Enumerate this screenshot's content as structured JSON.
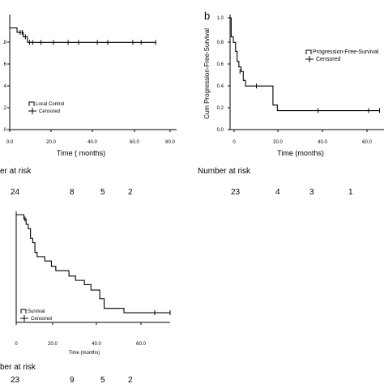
{
  "panels": [
    {
      "letter": "",
      "chart_data": {
        "type": "line",
        "subtype": "kaplan-meier",
        "title": "",
        "xlabel": "Time ( months)",
        "ylabel": "",
        "xlim": [
          0,
          80
        ],
        "ylim": [
          0,
          1
        ],
        "x_ticks": [
          "0.0",
          "20.0",
          "40.0",
          "60.0",
          "80.0"
        ],
        "y_ticks": [
          "0",
          ".2",
          ".4",
          ".6",
          ".8"
        ],
        "grid": false,
        "legend": {
          "position": "bottom-left",
          "entries": [
            "Local Control",
            "Censored"
          ]
        },
        "series": [
          {
            "name": "Local Control",
            "steps": [
              [
                0,
                0.91
              ],
              [
                3.5,
                0.87
              ],
              [
                6.5,
                0.83
              ],
              [
                8.5,
                0.78
              ],
              [
                70,
                0.78
              ]
            ],
            "censored": [
              [
                5,
                0.87
              ],
              [
                6,
                0.87
              ],
              [
                7.5,
                0.83
              ],
              [
                9.5,
                0.78
              ],
              [
                11,
                0.78
              ],
              [
                15,
                0.78
              ],
              [
                21,
                0.78
              ],
              [
                28,
                0.78
              ],
              [
                33,
                0.78
              ],
              [
                42,
                0.78
              ],
              [
                47,
                0.78
              ],
              [
                59,
                0.78
              ],
              [
                63,
                0.78
              ],
              [
                70,
                0.78
              ]
            ]
          }
        ]
      },
      "risk": {
        "label": "er at risk",
        "values": [
          "24",
          "8",
          "5",
          "2"
        ]
      }
    },
    {
      "letter": "b",
      "chart_data": {
        "type": "line",
        "subtype": "kaplan-meier",
        "title": "",
        "xlabel": "Time  (months)",
        "ylabel": "Cum Progression-Free-Survival",
        "xlim": [
          0,
          70
        ],
        "ylim": [
          0,
          1
        ],
        "x_ticks": [
          "0",
          "20.0",
          "40.0",
          "60.0"
        ],
        "y_ticks": [
          "0.0",
          "0.2",
          "0.4",
          "0.6",
          "0.8",
          "1.0"
        ],
        "grid": false,
        "legend": {
          "position": "top-right",
          "entries": [
            "Progression-Free-Survival",
            "Censored"
          ]
        },
        "series": [
          {
            "name": "Progression-Free-Survival",
            "steps": [
              [
                0,
                1.0
              ],
              [
                0.5,
                0.83
              ],
              [
                1.5,
                0.78
              ],
              [
                2.5,
                0.7
              ],
              [
                3.2,
                0.61
              ],
              [
                4.0,
                0.56
              ],
              [
                5.0,
                0.52
              ],
              [
                6.0,
                0.44
              ],
              [
                7.0,
                0.39
              ],
              [
                19.5,
                0.22
              ],
              [
                21.5,
                0.17
              ],
              [
                68,
                0.17
              ]
            ],
            "censored": [
              [
                4.5,
                0.52
              ],
              [
                12,
                0.39
              ],
              [
                40,
                0.17
              ],
              [
                63,
                0.17
              ],
              [
                68,
                0.17
              ]
            ]
          }
        ]
      },
      "risk": {
        "label": "Number at risk",
        "values": [
          "23",
          "4",
          "3",
          "1"
        ]
      }
    },
    {
      "letter": "",
      "chart_data": {
        "type": "line",
        "subtype": "kaplan-meier",
        "title": "",
        "xlabel": "Time  (months)",
        "ylabel": "",
        "xlim": [
          0,
          70
        ],
        "ylim": [
          0,
          1
        ],
        "x_ticks": [
          "0",
          "20.0",
          "40.0",
          "60.0"
        ],
        "y_ticks": [],
        "grid": false,
        "legend": {
          "position": "bottom-left",
          "entries": [
            "Survival",
            "Censored"
          ]
        },
        "series": [
          {
            "name": "Survival",
            "steps": [
              [
                0,
                1.0
              ],
              [
                3.5,
                0.96
              ],
              [
                4.5,
                0.91
              ],
              [
                5.5,
                0.87
              ],
              [
                6.5,
                0.78
              ],
              [
                7.5,
                0.74
              ],
              [
                8.5,
                0.65
              ],
              [
                9.5,
                0.61
              ],
              [
                13,
                0.57
              ],
              [
                16,
                0.52
              ],
              [
                18,
                0.48
              ],
              [
                24,
                0.43
              ],
              [
                27,
                0.39
              ],
              [
                31,
                0.35
              ],
              [
                34,
                0.3
              ],
              [
                38,
                0.22
              ],
              [
                40,
                0.13
              ],
              [
                49,
                0.09
              ],
              [
                70,
                0.09
              ]
            ],
            "censored": [
              [
                4,
                0.96
              ],
              [
                63,
                0.09
              ],
              [
                70,
                0.09
              ]
            ]
          }
        ]
      },
      "risk": {
        "label": "ber at risk",
        "values": [
          "23",
          "9",
          "5",
          "2"
        ]
      }
    }
  ]
}
